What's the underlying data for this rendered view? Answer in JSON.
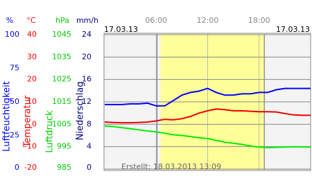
{
  "chart_data": {
    "type": "line",
    "x": [
      0,
      1,
      2,
      3,
      4,
      5,
      6,
      7,
      8,
      9,
      10,
      11,
      12,
      13,
      14,
      15,
      16,
      17,
      18,
      19,
      20,
      21,
      22,
      23,
      24
    ],
    "xlim": [
      0,
      24
    ],
    "xticks": [
      {
        "value": 6,
        "label": "06:00"
      },
      {
        "value": 12,
        "label": "12:00"
      },
      {
        "value": 18,
        "label": "18:00"
      }
    ],
    "date_left": "17.03.13",
    "date_right": "17.03.13",
    "created": "Erstellt: 18.03.2013 13:09",
    "daylight": [
      6.5,
      18.6
    ],
    "grid": true,
    "axes": [
      {
        "unit": "%",
        "title": "Luftfeuchtigkeit",
        "color": "#0000ff",
        "ylim": [
          0,
          100
        ],
        "yticks": [
          0,
          25,
          50,
          75,
          100
        ]
      },
      {
        "unit": "°C",
        "title": "Temperatur",
        "color": "#ff0000",
        "ylim": [
          -20,
          40
        ],
        "yticks": [
          -20,
          -10,
          0,
          10,
          20,
          30,
          40
        ]
      },
      {
        "unit": "hPa",
        "title": "Luftdruck",
        "color": "#00cc00",
        "ylim": [
          985,
          1045
        ],
        "yticks": [
          985,
          995,
          1005,
          1015,
          1025,
          1035,
          1045
        ]
      },
      {
        "unit": "mm/h",
        "title": "Niederschlag",
        "color": "#000080",
        "ylim": [
          0,
          24
        ],
        "yticks": [
          0,
          4,
          8,
          12,
          16,
          20,
          24
        ]
      }
    ],
    "series": [
      {
        "axis": 0,
        "color": "#0000ff",
        "values": [
          48,
          48,
          48,
          48.5,
          48.5,
          49,
          47,
          47,
          51,
          55,
          57,
          58,
          60,
          57,
          55,
          55,
          56,
          56,
          57,
          57,
          59,
          60,
          60,
          60,
          60
        ]
      },
      {
        "axis": 1,
        "color": "#ee0000",
        "values": [
          1,
          0.8,
          0.7,
          0.7,
          0.8,
          1,
          1.5,
          2.2,
          2,
          2.5,
          3.5,
          5,
          6,
          6.8,
          6.5,
          6,
          6,
          5.8,
          5.6,
          5.6,
          5.5,
          4.8,
          4.2,
          4,
          4
        ]
      },
      {
        "axis": 2,
        "color": "#00ee00",
        "values": [
          1004.2,
          1004,
          1003.5,
          1003,
          1002.5,
          1002,
          1001.6,
          1001,
          1000.3,
          1000,
          999.5,
          999,
          998.6,
          997.8,
          997,
          996.5,
          996,
          995.3,
          994.8,
          994.6,
          994.7,
          994.8,
          995,
          994.9,
          994.8
        ]
      }
    ]
  }
}
